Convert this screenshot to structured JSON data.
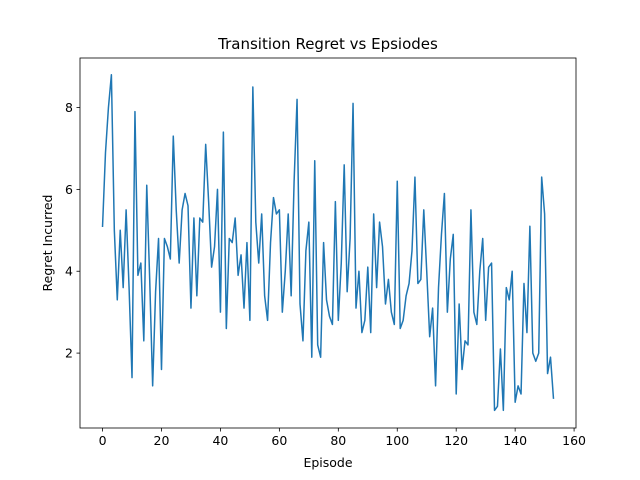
{
  "chart_data": {
    "type": "line",
    "title": "Transition Regret vs Epsiodes",
    "xlabel": "Episode",
    "ylabel": "Regret Incurred",
    "xlim": [
      -7.65,
      160.65
    ],
    "ylim": [
      0.17,
      9.21
    ],
    "xticks": [
      0,
      20,
      40,
      60,
      80,
      100,
      120,
      140,
      160
    ],
    "yticks": [
      2,
      4,
      6,
      8
    ],
    "grid": false,
    "legend": "none",
    "line_color": "#1f77b4",
    "series": [
      {
        "x": [
          0,
          1,
          2,
          3,
          4,
          5,
          6,
          7,
          8,
          9,
          10,
          11,
          12,
          13,
          14,
          15,
          16,
          17,
          18,
          19,
          20,
          21,
          22,
          23,
          24,
          25,
          26,
          27,
          28,
          29,
          30,
          31,
          32,
          33,
          34,
          35,
          36,
          37,
          38,
          39,
          40,
          41,
          42,
          43,
          44,
          45,
          46,
          47,
          48,
          49,
          50,
          51,
          52,
          53,
          54,
          55,
          56,
          57,
          58,
          59,
          60,
          61,
          62,
          63,
          64,
          65,
          66,
          67,
          68,
          69,
          70,
          71,
          72,
          73,
          74,
          75,
          76,
          77,
          78,
          79,
          80,
          81,
          82,
          83,
          84,
          85,
          86,
          87,
          88,
          89,
          90,
          91,
          92,
          93,
          94,
          95,
          96,
          97,
          98,
          99,
          100,
          101,
          102,
          103,
          104,
          105,
          106,
          107,
          108,
          109,
          110,
          111,
          112,
          113,
          114,
          115,
          116,
          117,
          118,
          119,
          120,
          121,
          122,
          123,
          124,
          125,
          126,
          127,
          128,
          129,
          130,
          131,
          132,
          133,
          134,
          135,
          136,
          137,
          138,
          139,
          140,
          141,
          142,
          143,
          144,
          145,
          146,
          147,
          148,
          149,
          150,
          151,
          152,
          153
        ],
        "y": [
          5.1,
          6.9,
          8.0,
          8.8,
          5.0,
          3.3,
          5.0,
          3.6,
          5.5,
          3.6,
          1.4,
          7.9,
          3.9,
          4.2,
          2.3,
          6.1,
          3.8,
          1.2,
          3.5,
          4.8,
          1.6,
          4.8,
          4.6,
          4.3,
          7.3,
          5.5,
          4.2,
          5.5,
          5.9,
          5.6,
          3.1,
          5.3,
          3.4,
          5.3,
          5.2,
          7.1,
          5.7,
          4.1,
          4.6,
          6.0,
          3.0,
          7.4,
          2.6,
          4.8,
          4.7,
          5.3,
          3.9,
          4.4,
          3.1,
          4.7,
          2.8,
          8.5,
          5.2,
          4.2,
          5.4,
          3.4,
          2.8,
          4.7,
          5.8,
          5.4,
          5.5,
          3.0,
          4.0,
          5.4,
          3.4,
          6.2,
          8.2,
          3.2,
          2.3,
          4.5,
          5.2,
          1.9,
          6.7,
          2.2,
          1.9,
          4.7,
          3.3,
          2.9,
          2.7,
          5.7,
          2.8,
          4.2,
          6.6,
          3.5,
          4.8,
          8.1,
          3.1,
          4.0,
          2.5,
          2.8,
          4.1,
          2.5,
          5.4,
          3.6,
          5.2,
          4.6,
          3.2,
          3.8,
          3.0,
          2.7,
          6.2,
          2.6,
          2.8,
          3.4,
          3.7,
          4.5,
          6.3,
          3.7,
          3.8,
          5.5,
          4.0,
          2.4,
          3.1,
          1.2,
          3.6,
          4.9,
          5.9,
          3.0,
          4.3,
          4.9,
          1.0,
          3.2,
          1.6,
          2.3,
          2.2,
          5.5,
          3.0,
          2.7,
          4.0,
          4.8,
          2.8,
          4.1,
          4.2,
          0.6,
          0.7,
          2.1,
          0.6,
          3.6,
          3.3,
          4.0,
          0.8,
          1.2,
          1.0,
          3.7,
          2.5,
          5.1,
          2.0,
          1.8,
          2.0,
          6.3,
          5.4,
          1.5,
          1.9,
          0.9
        ]
      }
    ]
  }
}
